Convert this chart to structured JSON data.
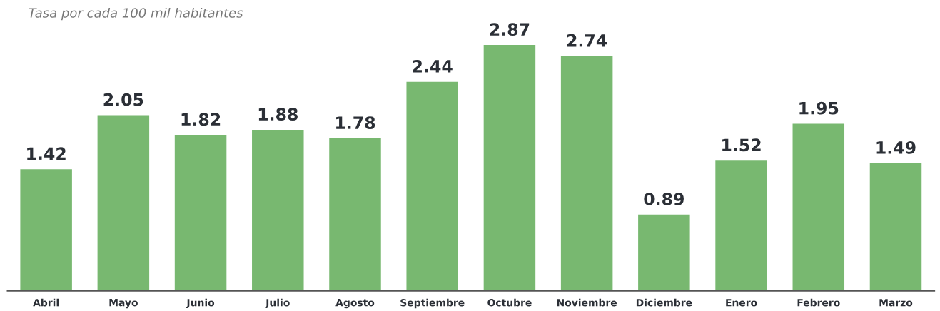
{
  "chart_data": {
    "type": "bar",
    "subtitle": "Tasa por cada 100 mil habitantes",
    "categories": [
      "Abril",
      "Mayo",
      "Junio",
      "Julio",
      "Agosto",
      "Septiembre",
      "Octubre",
      "Noviembre",
      "Diciembre",
      "Enero",
      "Febrero",
      "Marzo"
    ],
    "values": [
      1.42,
      2.05,
      1.82,
      1.88,
      1.78,
      2.44,
      2.87,
      2.74,
      0.89,
      1.52,
      1.95,
      1.49
    ],
    "color": "#78b870",
    "data_labels": true,
    "grid": false,
    "legend": false,
    "tick_labels": "x"
  }
}
